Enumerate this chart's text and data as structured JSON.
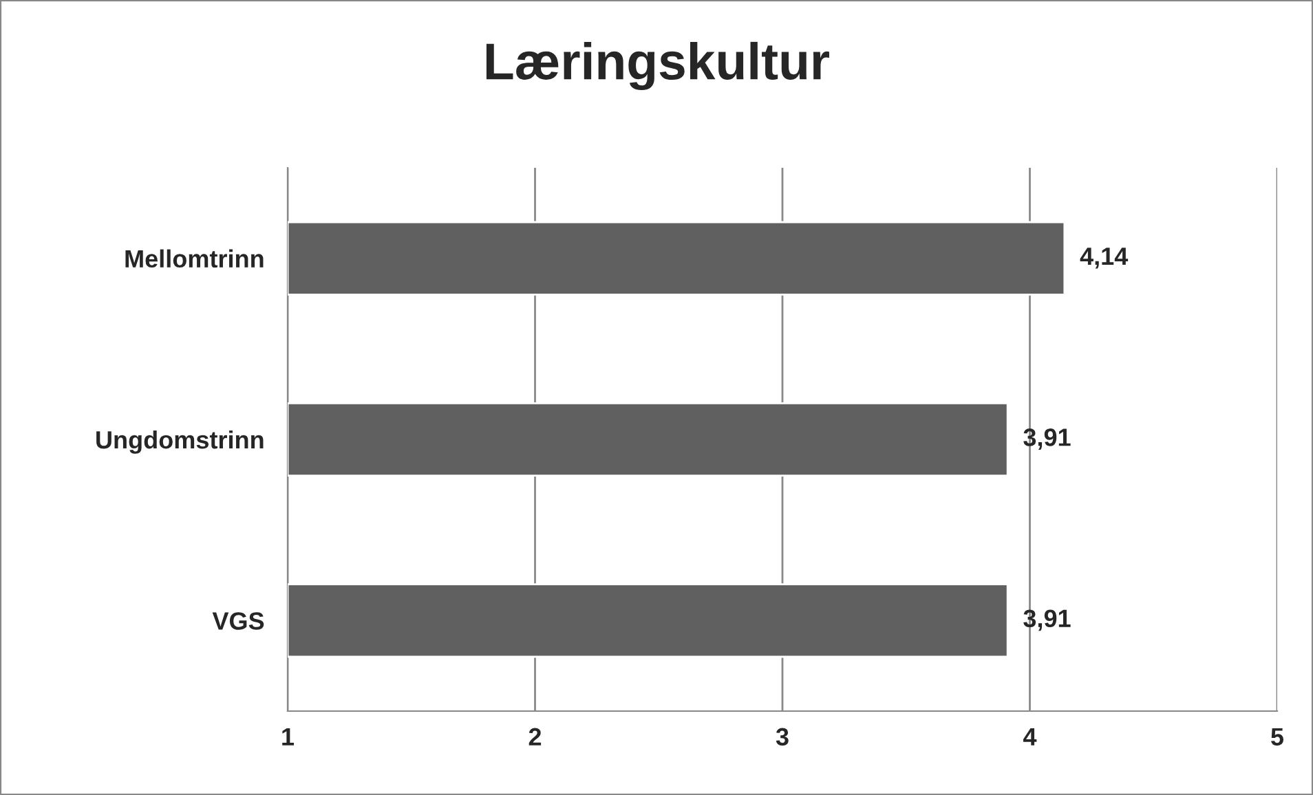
{
  "chart_data": {
    "type": "bar",
    "orientation": "horizontal",
    "title": "Læringskultur",
    "categories": [
      "Mellomtrinn",
      "Ungdomstrinn",
      "VGS"
    ],
    "values": [
      4.14,
      3.91,
      3.91
    ],
    "color": "#606060",
    "value_labels": [
      "4,14",
      "3,91",
      "3,91"
    ],
    "xlim": [
      1,
      5
    ],
    "xticks": [
      1,
      2,
      3,
      4,
      5
    ],
    "grid": "x",
    "legend": false
  }
}
